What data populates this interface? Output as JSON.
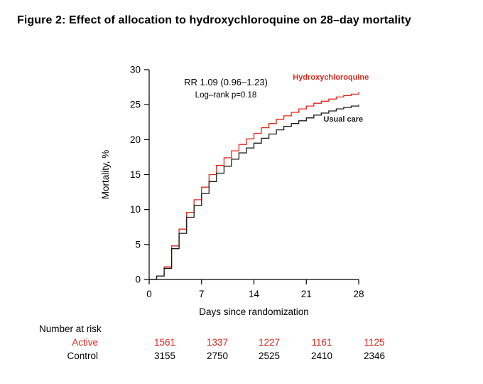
{
  "figure": {
    "title": "Figure 2: Effect of allocation to hydroxychloroquine on 28–day mortality"
  },
  "chart_data": {
    "type": "line",
    "subtype": "step",
    "title": "",
    "xlabel": "Days since randomization",
    "ylabel": "Mortality, %",
    "xlim": [
      0,
      28
    ],
    "ylim": [
      0,
      30
    ],
    "xticks": [
      0,
      7,
      14,
      21,
      28
    ],
    "yticks": [
      0,
      5,
      10,
      15,
      20,
      25,
      30
    ],
    "grid": false,
    "legend_position": "inline-labels",
    "annotation": {
      "line1": "RR 1.09 (0.96–1.23)",
      "line2": "Log–rank p=0.18"
    },
    "series": [
      {
        "name": "Hydroxychloroquine",
        "color": "#e0261c",
        "label_x": 19.2,
        "label_y": 28.6,
        "x": [
          0,
          1,
          2,
          3,
          4,
          5,
          6,
          7,
          8,
          9,
          10,
          11,
          12,
          13,
          14,
          15,
          16,
          17,
          18,
          19,
          20,
          21,
          22,
          23,
          24,
          25,
          26,
          27,
          28
        ],
        "y": [
          0,
          0.5,
          1.8,
          4.8,
          7.2,
          9.6,
          11.4,
          13.2,
          15.0,
          16.3,
          17.4,
          18.4,
          19.3,
          20.1,
          20.9,
          21.7,
          22.3,
          22.9,
          23.4,
          23.9,
          24.4,
          24.8,
          25.2,
          25.5,
          25.8,
          26.1,
          26.3,
          26.5,
          26.8
        ]
      },
      {
        "name": "Usual care",
        "color": "#1a1a1a",
        "label_x": 23.3,
        "label_y": 22.6,
        "x": [
          0,
          1,
          2,
          3,
          4,
          5,
          6,
          7,
          8,
          9,
          10,
          11,
          12,
          13,
          14,
          15,
          16,
          17,
          18,
          19,
          20,
          21,
          22,
          23,
          24,
          25,
          26,
          27,
          28
        ],
        "y": [
          0,
          0.5,
          1.6,
          4.4,
          6.6,
          8.9,
          10.6,
          12.3,
          14.0,
          15.2,
          16.2,
          17.2,
          18.1,
          18.8,
          19.5,
          20.2,
          20.8,
          21.4,
          21.9,
          22.3,
          22.7,
          23.1,
          23.5,
          23.8,
          24.1,
          24.4,
          24.6,
          24.8,
          25.0
        ]
      }
    ]
  },
  "risk_table": {
    "header": "Number at risk",
    "days": [
      0,
      7,
      14,
      21,
      28
    ],
    "rows": [
      {
        "label": "Active",
        "color": "#e0261c",
        "values": [
          "1561",
          "1337",
          "1227",
          "1161",
          "1125"
        ]
      },
      {
        "label": "Control",
        "color": "#000000",
        "values": [
          "3155",
          "2750",
          "2525",
          "2410",
          "2346"
        ]
      }
    ]
  }
}
